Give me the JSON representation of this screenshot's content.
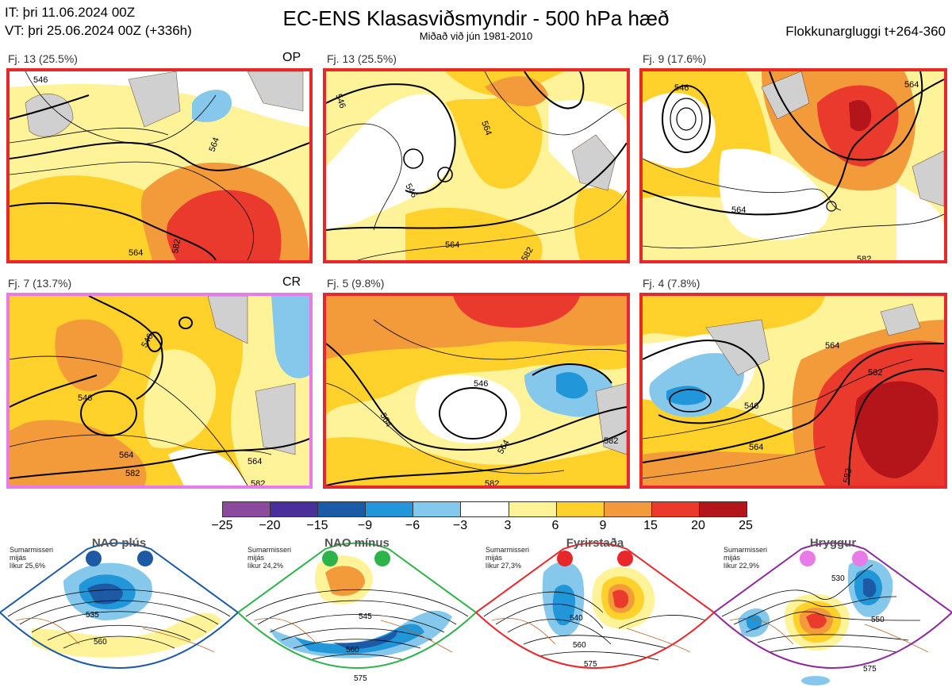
{
  "header": {
    "it_line": "IT: þri 11.06.2024 00Z",
    "vt_line": "VT: þri 25.06.2024 00Z  (+336h)",
    "title": "EC-ENS Klasasviðsmyndir - 500 hPa hæð",
    "subtitle": "Miðað við jún 1981-2010",
    "window": "Flokkunargluggi t+264-360"
  },
  "clusters": [
    {
      "label": "Fj. 13 (25.5%)",
      "tag": "OP",
      "border": "#e8272a",
      "contours": [
        "546",
        "564",
        "564",
        "582"
      ]
    },
    {
      "label": "Fj. 13 (25.5%)",
      "tag": "",
      "border": "#e8272a",
      "contours": [
        "546",
        "546",
        "564",
        "564",
        "582"
      ]
    },
    {
      "label": "Fj. 9 (17.6%)",
      "tag": "",
      "border": "#e8272a",
      "contours": [
        "546",
        "564",
        "564",
        "582"
      ]
    },
    {
      "label": "Fj. 7 (13.7%)",
      "tag": "CR",
      "border": "#e87be8",
      "contours": [
        "546",
        "546",
        "564",
        "564",
        "582",
        "582"
      ]
    },
    {
      "label": "Fj. 5 (9.8%)",
      "tag": "",
      "border": "#e8272a",
      "contours": [
        "546",
        "564",
        "564",
        "582",
        "582"
      ]
    },
    {
      "label": "Fj. 4 (7.8%)",
      "tag": "",
      "border": "#e8272a",
      "contours": [
        "546",
        "564",
        "564",
        "582",
        "582"
      ]
    }
  ],
  "legend": {
    "ticks": [
      "−25",
      "−20",
      "−15",
      "−9",
      "−6",
      "−3",
      "3",
      "6",
      "9",
      "15",
      "20",
      "25"
    ],
    "colors": [
      "#8c4a9c",
      "#4a2f9a",
      "#1d5aa6",
      "#2196d8",
      "#86c8ec",
      "#ffffff",
      "#fff39a",
      "#ffd12a",
      "#f39a3a",
      "#ea3a2e",
      "#b3151b"
    ]
  },
  "regimes": [
    {
      "name": "NAO plús",
      "note": [
        "Sumarmisseri",
        "mijás",
        "líkur 25,6%"
      ],
      "dot_color": "#1d5aa6",
      "frame": "#1d5aa6",
      "contours": [
        "535",
        "560"
      ]
    },
    {
      "name": "NAO mínus",
      "note": [
        "Sumarmisseri",
        "mijás",
        "líkur 24,2%"
      ],
      "dot_color": "#2db34a",
      "frame": "#2db34a",
      "contours": [
        "545",
        "560",
        "575"
      ]
    },
    {
      "name": "Fyrirstaða",
      "note": [
        "Sumarmisseri",
        "mijás",
        "líkur 27,3%"
      ],
      "dot_color": "#e8272a",
      "frame": "#e8272a",
      "contours": [
        "540",
        "560",
        "575"
      ]
    },
    {
      "name": "Hryggur",
      "note": [
        "Sumarmisseri",
        "mijás",
        "líkur 22,9%"
      ],
      "dot_color": "#e87be8",
      "frame": "#8c2a9c",
      "contours": [
        "530",
        "550",
        "575"
      ]
    }
  ]
}
